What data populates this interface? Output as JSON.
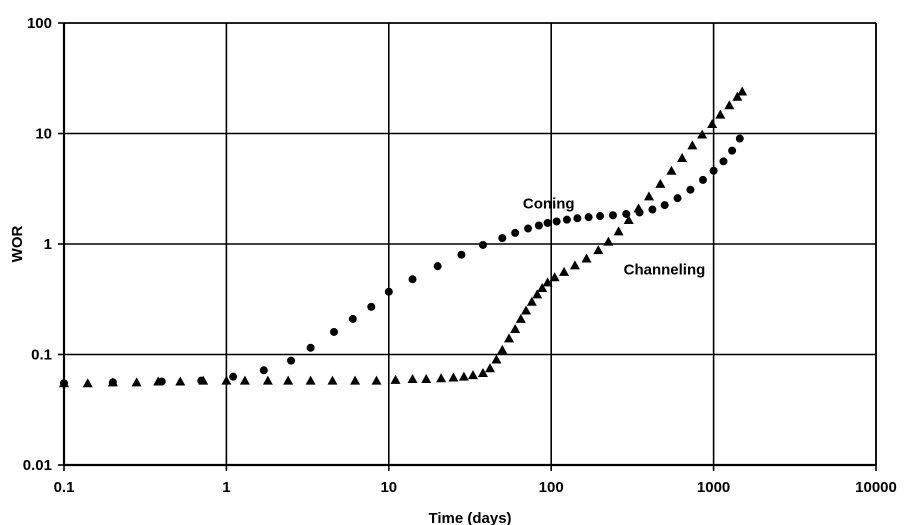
{
  "chart_data": {
    "type": "scatter",
    "title": "",
    "xlabel": "Time (days)",
    "ylabel": "WOR",
    "xscale": "log",
    "yscale": "log",
    "xlim": [
      0.1,
      10000
    ],
    "ylim": [
      0.01,
      100
    ],
    "grid": true,
    "x_ticks": [
      "0.1",
      "1",
      "10",
      "100",
      "1000",
      "10000"
    ],
    "y_ticks": [
      "0.01",
      "0.1",
      "1",
      "10",
      "100"
    ],
    "colors": {
      "axis": "#000000",
      "grid": "#000000",
      "series": "#000000"
    },
    "series": [
      {
        "marker": "circle",
        "points": [
          [
            0.1,
            0.055
          ],
          [
            0.2,
            0.056
          ],
          [
            0.4,
            0.057
          ],
          [
            0.7,
            0.058
          ],
          [
            1.1,
            0.063
          ],
          [
            1.7,
            0.072
          ],
          [
            2.5,
            0.088
          ],
          [
            3.3,
            0.115
          ],
          [
            4.6,
            0.16
          ],
          [
            6.0,
            0.21
          ],
          [
            7.8,
            0.27
          ],
          [
            10,
            0.37
          ],
          [
            14,
            0.48
          ],
          [
            20,
            0.63
          ],
          [
            28,
            0.8
          ],
          [
            38,
            0.98
          ],
          [
            50,
            1.13
          ],
          [
            60,
            1.26
          ],
          [
            72,
            1.38
          ],
          [
            84,
            1.47
          ],
          [
            95,
            1.55
          ],
          [
            108,
            1.6
          ],
          [
            125,
            1.66
          ],
          [
            145,
            1.71
          ],
          [
            170,
            1.75
          ],
          [
            200,
            1.79
          ],
          [
            240,
            1.82
          ],
          [
            290,
            1.87
          ],
          [
            350,
            1.93
          ],
          [
            420,
            2.05
          ],
          [
            500,
            2.25
          ],
          [
            600,
            2.6
          ],
          [
            720,
            3.1
          ],
          [
            860,
            3.8
          ],
          [
            1000,
            4.6
          ],
          [
            1150,
            5.6
          ],
          [
            1300,
            7.0
          ],
          [
            1450,
            9.0
          ]
        ]
      },
      {
        "marker": "triangle",
        "points": [
          [
            0.1,
            0.055
          ],
          [
            0.14,
            0.055
          ],
          [
            0.2,
            0.056
          ],
          [
            0.28,
            0.056
          ],
          [
            0.38,
            0.057
          ],
          [
            0.52,
            0.057
          ],
          [
            0.72,
            0.058
          ],
          [
            1.0,
            0.058
          ],
          [
            1.3,
            0.058
          ],
          [
            1.8,
            0.058
          ],
          [
            2.4,
            0.058
          ],
          [
            3.3,
            0.058
          ],
          [
            4.5,
            0.058
          ],
          [
            6.2,
            0.058
          ],
          [
            8.4,
            0.058
          ],
          [
            11,
            0.059
          ],
          [
            14,
            0.06
          ],
          [
            17,
            0.06
          ],
          [
            21,
            0.061
          ],
          [
            25,
            0.062
          ],
          [
            29,
            0.063
          ],
          [
            33,
            0.065
          ],
          [
            38,
            0.068
          ],
          [
            42,
            0.075
          ],
          [
            46,
            0.09
          ],
          [
            50,
            0.11
          ],
          [
            55,
            0.14
          ],
          [
            60,
            0.17
          ],
          [
            65,
            0.21
          ],
          [
            70,
            0.25
          ],
          [
            76,
            0.3
          ],
          [
            82,
            0.35
          ],
          [
            88,
            0.4
          ],
          [
            95,
            0.45
          ],
          [
            105,
            0.5
          ],
          [
            120,
            0.56
          ],
          [
            140,
            0.64
          ],
          [
            165,
            0.74
          ],
          [
            195,
            0.88
          ],
          [
            225,
            1.05
          ],
          [
            260,
            1.3
          ],
          [
            300,
            1.65
          ],
          [
            345,
            2.1
          ],
          [
            400,
            2.7
          ],
          [
            470,
            3.5
          ],
          [
            550,
            4.6
          ],
          [
            640,
            6.0
          ],
          [
            740,
            7.8
          ],
          [
            850,
            9.8
          ],
          [
            980,
            12.2
          ],
          [
            1100,
            14.8
          ],
          [
            1250,
            18
          ],
          [
            1400,
            21.5
          ],
          [
            1500,
            24
          ]
        ]
      }
    ],
    "annotations": [
      {
        "text": "Coning",
        "x": 75,
        "y": 2.1
      },
      {
        "text": "Channeling",
        "x": 170,
        "y": 0.6
      }
    ]
  }
}
